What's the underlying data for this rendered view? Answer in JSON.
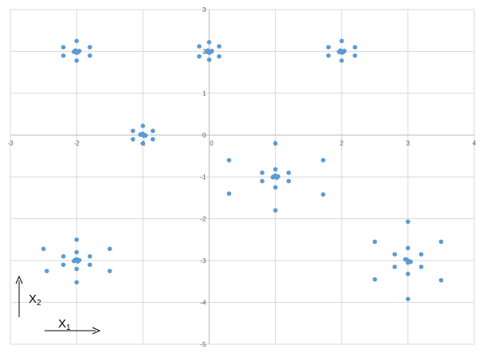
{
  "chart_data": {
    "type": "scatter",
    "title": "",
    "xlabel": "",
    "ylabel": "",
    "xlim": [
      -3,
      4
    ],
    "ylim": [
      -5,
      3
    ],
    "x_ticks": [
      "-3",
      "-2",
      "-1",
      "0",
      "1",
      "2",
      "3",
      "4"
    ],
    "y_ticks": [
      "3",
      "2",
      "1",
      "0",
      "-1",
      "-2",
      "-3",
      "-4",
      "-5"
    ],
    "grid": true,
    "marker_color": "#5B9BD5",
    "annotations": {
      "x2": {
        "main": "X",
        "sub": "2"
      },
      "x1": {
        "main": "X",
        "sub": "1"
      }
    },
    "series": [
      {
        "points": [
          [
            -2.0,
            2.0
          ],
          [
            -2.02,
            2.02
          ],
          [
            -1.98,
            1.98
          ],
          [
            -2.04,
            1.99
          ],
          [
            -1.96,
            2.01
          ],
          [
            -2.0,
            1.97
          ],
          [
            -2.0,
            2.25
          ],
          [
            -2.0,
            1.78
          ],
          [
            -2.2,
            2.1
          ],
          [
            -2.2,
            1.9
          ],
          [
            -1.8,
            2.1
          ],
          [
            -1.8,
            1.9
          ],
          [
            0.0,
            2.0
          ],
          [
            -0.02,
            2.02
          ],
          [
            0.02,
            1.98
          ],
          [
            -0.04,
            1.99
          ],
          [
            0.04,
            2.01
          ],
          [
            0.0,
            1.97
          ],
          [
            0.0,
            2.22
          ],
          [
            0.0,
            1.8
          ],
          [
            -0.15,
            2.12
          ],
          [
            -0.15,
            1.88
          ],
          [
            0.15,
            2.12
          ],
          [
            0.15,
            1.88
          ],
          [
            2.0,
            2.0
          ],
          [
            1.98,
            2.02
          ],
          [
            2.02,
            1.98
          ],
          [
            1.96,
            1.99
          ],
          [
            2.04,
            2.01
          ],
          [
            2.0,
            1.97
          ],
          [
            2.0,
            2.25
          ],
          [
            2.0,
            1.78
          ],
          [
            1.8,
            2.1
          ],
          [
            1.8,
            1.9
          ],
          [
            2.2,
            2.1
          ],
          [
            2.2,
            1.9
          ],
          [
            -1.0,
            0.0
          ],
          [
            -1.02,
            0.02
          ],
          [
            -0.98,
            -0.02
          ],
          [
            -1.04,
            0.01
          ],
          [
            -0.96,
            -0.01
          ],
          [
            -1.0,
            0.03
          ],
          [
            -1.0,
            0.22
          ],
          [
            -1.0,
            -0.2
          ],
          [
            -1.15,
            0.1
          ],
          [
            -1.15,
            -0.1
          ],
          [
            -0.85,
            0.1
          ],
          [
            -0.85,
            -0.1
          ],
          [
            1.0,
            -1.0
          ],
          [
            0.98,
            -0.98
          ],
          [
            1.02,
            -1.02
          ],
          [
            0.96,
            -1.01
          ],
          [
            1.04,
            -0.99
          ],
          [
            1.0,
            -0.97
          ],
          [
            1.0,
            -0.2
          ],
          [
            1.0,
            -1.8
          ],
          [
            0.3,
            -0.6
          ],
          [
            0.3,
            -1.4
          ],
          [
            1.72,
            -0.6
          ],
          [
            1.72,
            -1.42
          ],
          [
            1.0,
            -0.82
          ],
          [
            1.0,
            -1.25
          ],
          [
            0.8,
            -0.9
          ],
          [
            0.8,
            -1.1
          ],
          [
            1.2,
            -0.9
          ],
          [
            1.2,
            -1.1
          ],
          [
            -2.0,
            -3.0
          ],
          [
            -2.02,
            -2.98
          ],
          [
            -1.98,
            -3.02
          ],
          [
            -2.04,
            -3.01
          ],
          [
            -1.96,
            -2.99
          ],
          [
            -2.0,
            -2.97
          ],
          [
            -2.0,
            -2.5
          ],
          [
            -2.0,
            -3.52
          ],
          [
            -2.5,
            -2.72
          ],
          [
            -2.45,
            -3.25
          ],
          [
            -1.5,
            -2.72
          ],
          [
            -1.5,
            -3.25
          ],
          [
            -2.0,
            -2.8
          ],
          [
            -2.0,
            -3.2
          ],
          [
            -2.2,
            -2.9
          ],
          [
            -2.2,
            -3.1
          ],
          [
            -1.8,
            -2.9
          ],
          [
            -1.8,
            -3.1
          ],
          [
            3.0,
            -3.0
          ],
          [
            2.98,
            -2.98
          ],
          [
            3.02,
            -3.02
          ],
          [
            2.96,
            -2.97
          ],
          [
            3.04,
            -3.03
          ],
          [
            3.0,
            -3.05
          ],
          [
            3.0,
            -2.07
          ],
          [
            3.0,
            -3.92
          ],
          [
            2.5,
            -2.55
          ],
          [
            2.5,
            -3.45
          ],
          [
            3.5,
            -2.55
          ],
          [
            3.5,
            -3.47
          ],
          [
            3.0,
            -2.7
          ],
          [
            3.0,
            -3.32
          ],
          [
            2.8,
            -2.85
          ],
          [
            2.8,
            -3.15
          ],
          [
            3.2,
            -2.85
          ],
          [
            3.2,
            -3.15
          ]
        ]
      }
    ]
  }
}
